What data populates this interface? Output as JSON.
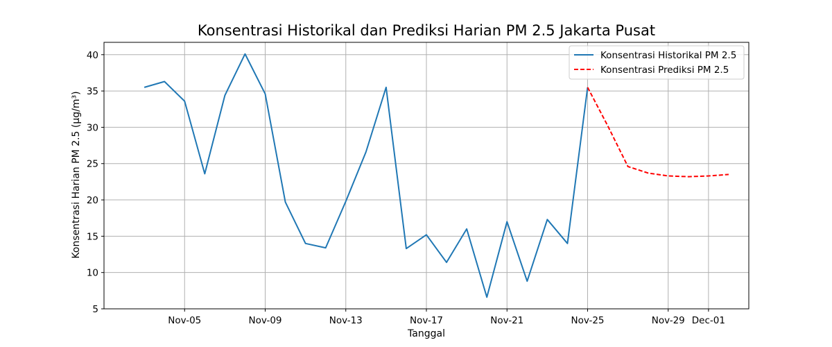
{
  "chart_data": {
    "type": "line",
    "title": "Konsentrasi Historikal dan Prediksi Harian PM 2.5 Jakarta Pusat",
    "xlabel": "Tanggal",
    "ylabel": "Konsentrasi Harian PM 2.5 (µg/m³)",
    "ylim": [
      5,
      41.7
    ],
    "xlim": [
      "2023-11-01",
      "2023-12-03"
    ],
    "grid": true,
    "legend_position": "top-right",
    "x_ticks": [
      {
        "date": "2023-11-05",
        "label": "Nov-05"
      },
      {
        "date": "2023-11-09",
        "label": "Nov-09"
      },
      {
        "date": "2023-11-13",
        "label": "Nov-13"
      },
      {
        "date": "2023-11-17",
        "label": "Nov-17"
      },
      {
        "date": "2023-11-21",
        "label": "Nov-21"
      },
      {
        "date": "2023-11-25",
        "label": "Nov-25"
      },
      {
        "date": "2023-11-29",
        "label": "Nov-29"
      },
      {
        "date": "2023-12-01",
        "label": "Dec-01"
      }
    ],
    "y_ticks": [
      5,
      10,
      15,
      20,
      25,
      30,
      35,
      40
    ],
    "series": [
      {
        "name": "Konsentrasi Historikal PM 2.5",
        "color": "#1f77b4",
        "style": "solid",
        "points": [
          {
            "x": "2023-11-03",
            "y": 35.5
          },
          {
            "x": "2023-11-04",
            "y": 36.3
          },
          {
            "x": "2023-11-05",
            "y": 33.6
          },
          {
            "x": "2023-11-06",
            "y": 23.6
          },
          {
            "x": "2023-11-07",
            "y": 34.4
          },
          {
            "x": "2023-11-08",
            "y": 40.1
          },
          {
            "x": "2023-11-09",
            "y": 34.6
          },
          {
            "x": "2023-11-10",
            "y": 19.7
          },
          {
            "x": "2023-11-11",
            "y": 14.0
          },
          {
            "x": "2023-11-12",
            "y": 13.4
          },
          {
            "x": "2023-11-13",
            "y": 19.8
          },
          {
            "x": "2023-11-14",
            "y": 26.6
          },
          {
            "x": "2023-11-15",
            "y": 35.5
          },
          {
            "x": "2023-11-16",
            "y": 13.3
          },
          {
            "x": "2023-11-17",
            "y": 15.2
          },
          {
            "x": "2023-11-18",
            "y": 11.4
          },
          {
            "x": "2023-11-19",
            "y": 16.0
          },
          {
            "x": "2023-11-20",
            "y": 6.6
          },
          {
            "x": "2023-11-21",
            "y": 17.0
          },
          {
            "x": "2023-11-22",
            "y": 8.8
          },
          {
            "x": "2023-11-23",
            "y": 17.3
          },
          {
            "x": "2023-11-24",
            "y": 14.0
          },
          {
            "x": "2023-11-25",
            "y": 35.5
          }
        ]
      },
      {
        "name": "Konsentrasi Prediksi PM 2.5",
        "color": "#ff0000",
        "style": "dashed",
        "points": [
          {
            "x": "2023-11-25",
            "y": 35.5
          },
          {
            "x": "2023-11-26",
            "y": 30.2
          },
          {
            "x": "2023-11-27",
            "y": 24.6
          },
          {
            "x": "2023-11-28",
            "y": 23.7
          },
          {
            "x": "2023-11-29",
            "y": 23.3
          },
          {
            "x": "2023-11-30",
            "y": 23.2
          },
          {
            "x": "2023-12-01",
            "y": 23.3
          },
          {
            "x": "2023-12-02",
            "y": 23.5
          }
        ]
      }
    ]
  }
}
